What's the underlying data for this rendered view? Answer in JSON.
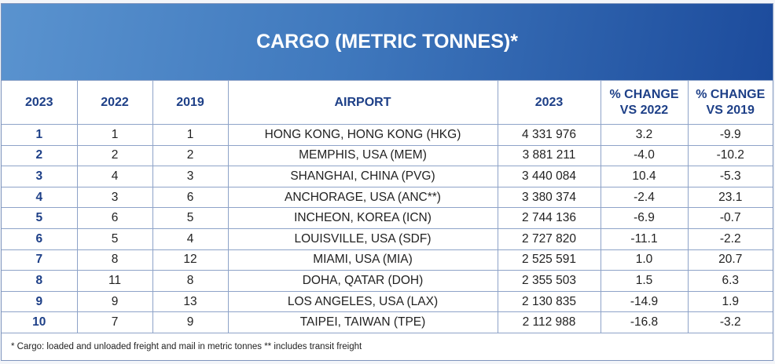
{
  "title": "CARGO (METRIC TONNES)*",
  "headers": [
    "2023",
    "2022",
    "2019",
    "AIRPORT",
    "2023",
    "% CHANGE VS 2022",
    "% CHANGE VS 2019"
  ],
  "rows": [
    [
      "1",
      "1",
      "1",
      "HONG KONG, HONG KONG (HKG)",
      "4 331 976",
      "3.2",
      "-9.9"
    ],
    [
      "2",
      "2",
      "2",
      "MEMPHIS,  USA (MEM)",
      "3 881 211",
      "-4.0",
      "-10.2"
    ],
    [
      "3",
      "4",
      "3",
      "SHANGHAI, CHINA (PVG)",
      "3 440 084",
      "10.4",
      "-5.3"
    ],
    [
      "4",
      "3",
      "6",
      "ANCHORAGE, USA (ANC**)",
      "3 380 374",
      "-2.4",
      "23.1"
    ],
    [
      "5",
      "6",
      "5",
      "INCHEON, KOREA (ICN)",
      "2 744 136",
      "-6.9",
      "-0.7"
    ],
    [
      "6",
      "5",
      "4",
      "LOUISVILLE,  USA (SDF)",
      "2 727 820",
      "-11.1",
      "-2.2"
    ],
    [
      "7",
      "8",
      "12",
      "MIAMI,  USA (MIA)",
      "2 525 591",
      "1.0",
      "20.7"
    ],
    [
      "8",
      "11",
      "8",
      "DOHA, QATAR (DOH)",
      "2 355 503",
      "1.5",
      "6.3"
    ],
    [
      "9",
      "9",
      "13",
      "LOS ANGELES, USA (LAX)",
      "2 130 835",
      "-14.9",
      "1.9"
    ],
    [
      "10",
      "7",
      "9",
      "TAIPEI, TAIWAN (TPE)",
      "2 112 988",
      "-16.8",
      "-3.2"
    ]
  ],
  "footnote": "* Cargo: loaded and unloaded freight and mail in metric tonnes ** includes transit freight"
}
